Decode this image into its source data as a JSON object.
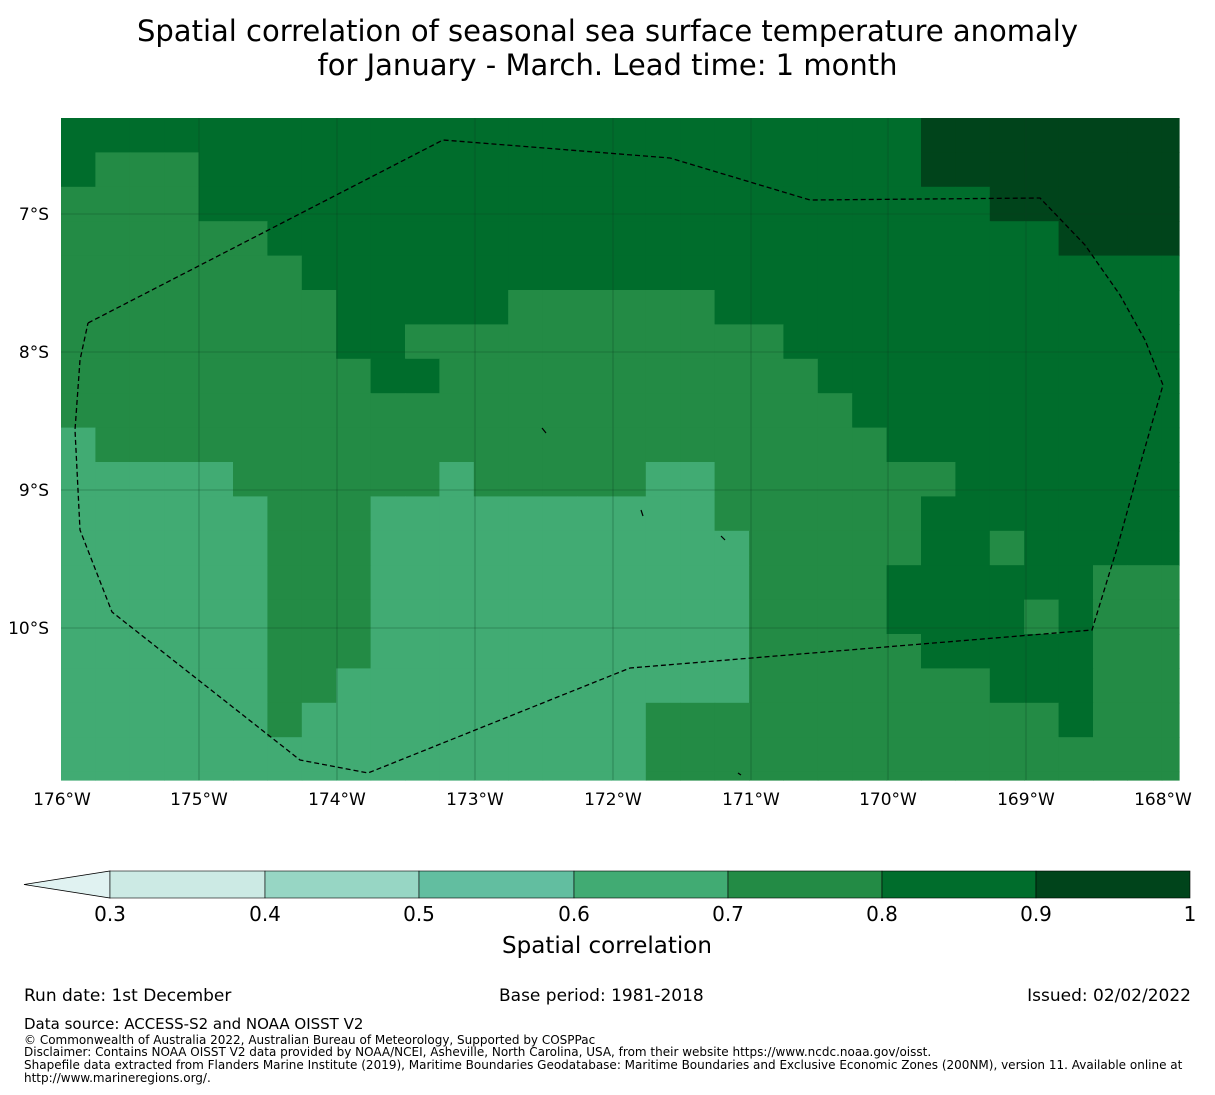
{
  "title": {
    "line1": "Spatial correlation of seasonal sea surface temperature anomaly",
    "line2": "for January - March. Lead time: 1 month"
  },
  "map": {
    "lat_labels": [
      "7°S",
      "8°S",
      "9°S",
      "10°S"
    ],
    "lon_labels": [
      "176°W",
      "175°W",
      "174°W",
      "173°W",
      "172°W",
      "171°W",
      "170°W",
      "169°W",
      "168°W"
    ],
    "grid": true,
    "region_boundary": "EEZ (dashed)"
  },
  "colorbar": {
    "label": "Spatial correlation",
    "ticks": [
      "0.3",
      "0.4",
      "0.5",
      "0.6",
      "0.7",
      "0.8",
      "0.9",
      "1"
    ],
    "colors": [
      "#e0f2f1",
      "#cceae4",
      "#97d6c4",
      "#62bea0",
      "#41ab73",
      "#238b45",
      "#006d2c",
      "#00441b"
    ]
  },
  "footer": {
    "run_date": "Run date: 1st December",
    "base_period": "Base period: 1981-2018",
    "issued": "Issued: 02/02/2022",
    "data_source": "Data source: ACCESS-S2 and NOAA OISST V2",
    "copyright": "© Commonwealth of Australia 2022, Australian Bureau of Meteorology, Supported by COSPPac",
    "disclaimer": "Disclaimer: Contains NOAA OISST V2 data provided by NOAA/NCEI, Asheville, North Carolina, USA, from their website https://www.ncdc.noaa.gov/oisst.",
    "shapefile": "Shapefile data extracted from Flanders Marine Institute (2019), Maritime Boundaries Geodatabase: Maritime Boundaries and Exclusive Economic Zones (200NM), version 11. Available online at http://www.marineregions.org/."
  }
}
